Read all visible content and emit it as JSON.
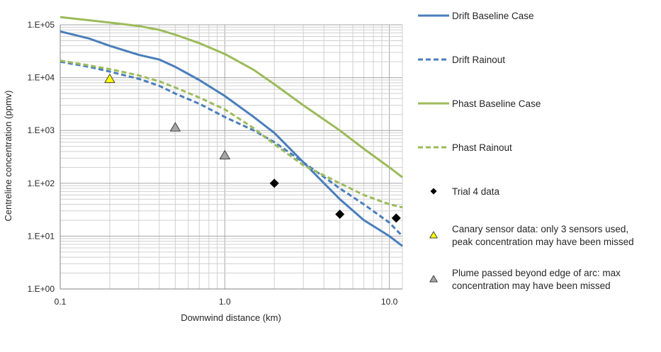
{
  "chart_data": {
    "type": "line",
    "title": "",
    "xlabel": "Downwind distance (km)",
    "ylabel": "Centreline concentration (ppmv)",
    "xscale": "log",
    "yscale": "log",
    "xlim": [
      0.1,
      12
    ],
    "ylim": [
      1,
      100000
    ],
    "x_ticks": [
      "0.1",
      "1.0",
      "10.0"
    ],
    "y_ticks": [
      "1.E+00",
      "1.E+01",
      "1.E+02",
      "1.E+03",
      "1.E+04",
      "1.E+05"
    ],
    "grid": true,
    "legend_position": "right",
    "series": [
      {
        "name": "Drift Baseline Case",
        "kind": "line",
        "style": "solid",
        "color": "#4a7ebb",
        "x": [
          0.1,
          0.15,
          0.2,
          0.3,
          0.4,
          0.5,
          0.7,
          1.0,
          1.5,
          2.0,
          3.0,
          5.0,
          7.0,
          10.0,
          12.0
        ],
        "y": [
          75000,
          55000,
          40000,
          27000,
          22000,
          16000,
          9000,
          4500,
          1800,
          900,
          250,
          50,
          20,
          10,
          6.5
        ]
      },
      {
        "name": "Drift Rainout",
        "kind": "line",
        "style": "dashed",
        "color": "#4a7ebb",
        "x": [
          0.1,
          0.15,
          0.2,
          0.3,
          0.4,
          0.5,
          0.7,
          1.0,
          1.5,
          2.0,
          3.0,
          5.0,
          7.0,
          10.0,
          12.0
        ],
        "y": [
          20000,
          16000,
          13000,
          9500,
          7000,
          5000,
          3200,
          1800,
          1000,
          600,
          250,
          80,
          40,
          18,
          10
        ]
      },
      {
        "name": "Phast Baseline Case",
        "kind": "line",
        "style": "solid",
        "color": "#9bbb59",
        "x": [
          0.1,
          0.2,
          0.3,
          0.4,
          0.5,
          0.7,
          1.0,
          1.5,
          2.0,
          3.0,
          5.0,
          7.0,
          10.0,
          12.0
        ],
        "y": [
          140000,
          110000,
          95000,
          80000,
          65000,
          45000,
          28000,
          14000,
          7500,
          3000,
          1000,
          450,
          200,
          130
        ]
      },
      {
        "name": "Phast Rainout",
        "kind": "line",
        "style": "dashed",
        "color": "#9bbb59",
        "x": [
          0.1,
          0.15,
          0.2,
          0.3,
          0.4,
          0.5,
          0.7,
          1.0,
          1.5,
          2.0,
          3.0,
          5.0,
          7.0,
          10.0,
          12.0
        ],
        "y": [
          21000,
          17000,
          14500,
          11000,
          8500,
          6500,
          4200,
          2500,
          1100,
          550,
          220,
          100,
          60,
          40,
          35
        ]
      },
      {
        "name": "Trial 4 data",
        "kind": "scatter",
        "marker": "diamond",
        "color": "#000000",
        "x": [
          2.0,
          5.0,
          11.0
        ],
        "y": [
          100,
          26,
          22
        ]
      },
      {
        "name": "Canary sensor data: only 3 sensors used, peak concentration may have been missed",
        "legend_lines": [
          "Canary sensor data: only 3 sensors used,",
          "peak concentration may have been missed"
        ],
        "kind": "scatter",
        "marker": "triangle",
        "color": "#ffff00",
        "x": [
          0.2
        ],
        "y": [
          9500
        ]
      },
      {
        "name": "Plume passed beyond edge of arc: max concentration may have been missed",
        "legend_lines": [
          "Plume passed beyond edge of arc: max",
          "concentration may have been missed"
        ],
        "kind": "scatter",
        "marker": "triangle",
        "color": "#a6a6a6",
        "x": [
          0.5,
          1.0
        ],
        "y": [
          1150,
          340
        ]
      }
    ]
  }
}
